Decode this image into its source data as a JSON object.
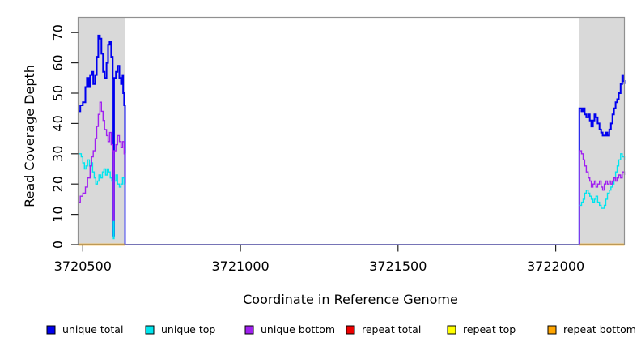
{
  "figure": {
    "title": "",
    "background": "#ffffff",
    "plot_box_color": "#909090",
    "repeat_region_fill": "#D9D9D9"
  },
  "chart_data": {
    "type": "line",
    "line_style": "step",
    "title": "",
    "xlabel": "Coordinate in Reference Genome",
    "ylabel": "Read Coverage Depth",
    "xlim": [
      3720485,
      3722218
    ],
    "ylim": [
      0,
      75
    ],
    "xticks": [
      3720500,
      3721000,
      3721500,
      3722000
    ],
    "xtick_labels": [
      "3720500",
      "3721000",
      "3721500",
      "3722000"
    ],
    "yticks": [
      0,
      10,
      20,
      30,
      40,
      50,
      60,
      70
    ],
    "ytick_labels": [
      "0",
      "10",
      "20",
      "30",
      "40",
      "50",
      "60",
      "70"
    ],
    "grid": false,
    "legend_position": "bottom",
    "repeat_regions": [
      [
        3720485,
        3720634
      ],
      [
        3722075,
        3722218
      ]
    ],
    "series": [
      {
        "name": "unique total",
        "color": "#0000EE",
        "paths": [
          [
            [
              3720485,
              44
            ],
            [
              3720492,
              46
            ],
            [
              3720500,
              47
            ],
            [
              3720508,
              52
            ],
            [
              3720513,
              55
            ],
            [
              3720518,
              52
            ],
            [
              3720523,
              56
            ],
            [
              3720528,
              57
            ],
            [
              3720533,
              53
            ],
            [
              3720539,
              56
            ],
            [
              3720544,
              62
            ],
            [
              3720549,
              69
            ],
            [
              3720554,
              68
            ],
            [
              3720559,
              63
            ],
            [
              3720564,
              57
            ],
            [
              3720569,
              55
            ],
            [
              3720575,
              60
            ],
            [
              3720580,
              66
            ],
            [
              3720585,
              67
            ],
            [
              3720590,
              62
            ],
            [
              3720595,
              55
            ],
            [
              3720597,
              3
            ],
            [
              3720599,
              55
            ],
            [
              3720605,
              57
            ],
            [
              3720610,
              59
            ],
            [
              3720616,
              55
            ],
            [
              3720621,
              53
            ],
            [
              3720626,
              56
            ],
            [
              3720628,
              50
            ],
            [
              3720631,
              46
            ],
            [
              3720634,
              0
            ],
            [
              3722075,
              45
            ],
            [
              3722082,
              44
            ],
            [
              3722087,
              45
            ],
            [
              3722092,
              43
            ],
            [
              3722097,
              42
            ],
            [
              3722103,
              43
            ],
            [
              3722108,
              41
            ],
            [
              3722113,
              39
            ],
            [
              3722118,
              41
            ],
            [
              3722123,
              43
            ],
            [
              3722128,
              42
            ],
            [
              3722133,
              40
            ],
            [
              3722139,
              38
            ],
            [
              3722144,
              37
            ],
            [
              3722149,
              36
            ],
            [
              3722154,
              36
            ],
            [
              3722159,
              37
            ],
            [
              3722164,
              36
            ],
            [
              3722170,
              38
            ],
            [
              3722175,
              40
            ],
            [
              3722180,
              43
            ],
            [
              3722185,
              45
            ],
            [
              3722190,
              47
            ],
            [
              3722195,
              48
            ],
            [
              3722200,
              50
            ],
            [
              3722206,
              53
            ],
            [
              3722211,
              56
            ],
            [
              3722214,
              54
            ],
            [
              3722218,
              53
            ]
          ]
        ]
      },
      {
        "name": "unique top",
        "color": "#00E5EE",
        "paths": [
          [
            [
              3720485,
              30
            ],
            [
              3720495,
              29
            ],
            [
              3720500,
              27
            ],
            [
              3720505,
              25
            ],
            [
              3720510,
              26
            ],
            [
              3720515,
              28
            ],
            [
              3720521,
              26
            ],
            [
              3720526,
              27
            ],
            [
              3720531,
              24
            ],
            [
              3720536,
              22
            ],
            [
              3720541,
              20
            ],
            [
              3720546,
              21
            ],
            [
              3720551,
              23
            ],
            [
              3720557,
              22
            ],
            [
              3720562,
              24
            ],
            [
              3720567,
              25
            ],
            [
              3720572,
              23
            ],
            [
              3720577,
              25
            ],
            [
              3720582,
              24
            ],
            [
              3720587,
              22
            ],
            [
              3720592,
              21
            ],
            [
              3720597,
              2
            ],
            [
              3720599,
              21
            ],
            [
              3720605,
              23
            ],
            [
              3720610,
              20
            ],
            [
              3720616,
              19
            ],
            [
              3720621,
              20
            ],
            [
              3720626,
              22
            ],
            [
              3720631,
              20
            ],
            [
              3720634,
              0
            ],
            [
              3722075,
              13
            ],
            [
              3722082,
              14
            ],
            [
              3722087,
              15
            ],
            [
              3722092,
              17
            ],
            [
              3722097,
              18
            ],
            [
              3722103,
              17
            ],
            [
              3722108,
              16
            ],
            [
              3722113,
              15
            ],
            [
              3722118,
              14
            ],
            [
              3722123,
              15
            ],
            [
              3722128,
              16
            ],
            [
              3722133,
              14
            ],
            [
              3722139,
              13
            ],
            [
              3722144,
              12
            ],
            [
              3722149,
              12
            ],
            [
              3722154,
              13
            ],
            [
              3722159,
              15
            ],
            [
              3722164,
              17
            ],
            [
              3722170,
              18
            ],
            [
              3722175,
              19
            ],
            [
              3722180,
              20
            ],
            [
              3722185,
              22
            ],
            [
              3722190,
              24
            ],
            [
              3722195,
              26
            ],
            [
              3722200,
              28
            ],
            [
              3722206,
              30
            ],
            [
              3722211,
              29
            ],
            [
              3722218,
              28
            ]
          ]
        ]
      },
      {
        "name": "unique bottom",
        "color": "#A020F0",
        "paths": [
          [
            [
              3720485,
              14
            ],
            [
              3720492,
              16
            ],
            [
              3720500,
              17
            ],
            [
              3720508,
              19
            ],
            [
              3720515,
              22
            ],
            [
              3720523,
              26
            ],
            [
              3720528,
              29
            ],
            [
              3720533,
              31
            ],
            [
              3720539,
              35
            ],
            [
              3720544,
              39
            ],
            [
              3720549,
              43
            ],
            [
              3720554,
              47
            ],
            [
              3720559,
              44
            ],
            [
              3720564,
              41
            ],
            [
              3720569,
              38
            ],
            [
              3720575,
              36
            ],
            [
              3720580,
              34
            ],
            [
              3720585,
              37
            ],
            [
              3720590,
              33
            ],
            [
              3720595,
              31
            ],
            [
              3720597,
              8
            ],
            [
              3720599,
              31
            ],
            [
              3720605,
              33
            ],
            [
              3720610,
              36
            ],
            [
              3720616,
              34
            ],
            [
              3720621,
              32
            ],
            [
              3720626,
              34
            ],
            [
              3720631,
              30
            ],
            [
              3720634,
              0
            ],
            [
              3722075,
              31
            ],
            [
              3722082,
              30
            ],
            [
              3722087,
              28
            ],
            [
              3722092,
              26
            ],
            [
              3722097,
              24
            ],
            [
              3722103,
              22
            ],
            [
              3722108,
              21
            ],
            [
              3722113,
              19
            ],
            [
              3722118,
              20
            ],
            [
              3722123,
              21
            ],
            [
              3722128,
              19
            ],
            [
              3722133,
              20
            ],
            [
              3722139,
              21
            ],
            [
              3722144,
              19
            ],
            [
              3722149,
              18
            ],
            [
              3722154,
              20
            ],
            [
              3722159,
              21
            ],
            [
              3722164,
              20
            ],
            [
              3722170,
              21
            ],
            [
              3722175,
              20
            ],
            [
              3722180,
              21
            ],
            [
              3722185,
              22
            ],
            [
              3722190,
              21
            ],
            [
              3722195,
              22
            ],
            [
              3722200,
              23
            ],
            [
              3722206,
              22
            ],
            [
              3722211,
              24
            ],
            [
              3722218,
              23
            ]
          ]
        ]
      },
      {
        "name": "repeat total",
        "color": "#EE0000",
        "paths": [
          [
            [
              3720485,
              0
            ],
            [
              3720634,
              0
            ]
          ],
          [
            [
              3722075,
              0
            ],
            [
              3722218,
              0
            ]
          ]
        ]
      },
      {
        "name": "repeat top",
        "color": "#FFFF00",
        "paths": [
          [
            [
              3720485,
              0
            ],
            [
              3720634,
              0
            ]
          ],
          [
            [
              3722075,
              0
            ],
            [
              3722218,
              0
            ]
          ]
        ]
      },
      {
        "name": "repeat bottom",
        "color": "#FFA500",
        "paths": [
          [
            [
              3720485,
              0
            ],
            [
              3720634,
              0
            ]
          ],
          [
            [
              3722075,
              0
            ],
            [
              3722218,
              0
            ]
          ]
        ]
      }
    ]
  }
}
